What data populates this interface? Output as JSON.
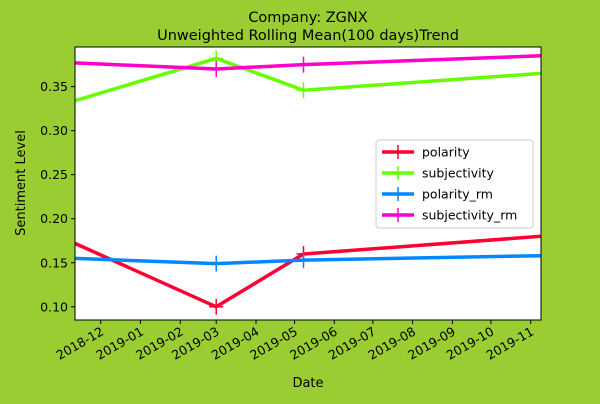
{
  "chart_data": {
    "type": "line",
    "title": "Company: ZGNX",
    "subtitle": "Unweighted Rolling Mean(100 days)Trend",
    "xlabel": "Date",
    "ylabel": "Sentiment Level",
    "xlim": [
      "2018-11-11",
      "2019-11-09"
    ],
    "ylim": [
      0.085,
      0.395
    ],
    "x_ticks": [
      "2018-12",
      "2019-01",
      "2019-02",
      "2019-03",
      "2019-04",
      "2019-05",
      "2019-06",
      "2019-07",
      "2019-08",
      "2019-09",
      "2019-10",
      "2019-11"
    ],
    "y_ticks": [
      0.1,
      0.15,
      0.2,
      0.25,
      0.3,
      0.35
    ],
    "grid": false,
    "legend_position": "center-right",
    "x": [
      "2019-03-01",
      "2019-05-08"
    ],
    "series": [
      {
        "name": "polarity",
        "color": "#ff0033",
        "values": [
          0.1,
          0.16
        ],
        "line": [
          [
            "2018-11-11",
            0.172
          ],
          [
            "2019-03-01",
            0.1
          ],
          [
            "2019-05-08",
            0.16
          ],
          [
            "2019-11-09",
            0.18
          ]
        ]
      },
      {
        "name": "subjectivity",
        "color": "#66ff00",
        "values": [
          0.382,
          0.346
        ],
        "line": [
          [
            "2018-11-11",
            0.334
          ],
          [
            "2019-03-01",
            0.382
          ],
          [
            "2019-05-08",
            0.346
          ],
          [
            "2019-11-09",
            0.365
          ]
        ]
      },
      {
        "name": "polarity_rm",
        "color": "#0088ff",
        "values": [
          0.149,
          0.153
        ],
        "line": [
          [
            "2018-11-11",
            0.155
          ],
          [
            "2019-03-01",
            0.149
          ],
          [
            "2019-05-08",
            0.153
          ],
          [
            "2019-11-09",
            0.158
          ]
        ]
      },
      {
        "name": "subjectivity_rm",
        "color": "#ff00cc",
        "values": [
          0.37,
          0.375
        ],
        "line": [
          [
            "2018-11-11",
            0.377
          ],
          [
            "2019-03-01",
            0.37
          ],
          [
            "2019-05-08",
            0.375
          ],
          [
            "2019-11-09",
            0.385
          ]
        ]
      }
    ]
  }
}
